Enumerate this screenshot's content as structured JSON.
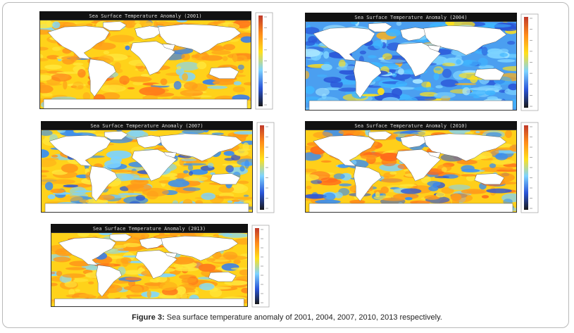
{
  "figure": {
    "caption_label": "Figure 3:",
    "caption_text": " Sea surface temperature anomaly of 2001, 2004, 2007, 2010, 2013 respectively."
  },
  "panels": [
    {
      "title": "Sea Surface Temperature Anomaly (2001)",
      "scheme": "warm"
    },
    {
      "title": "Sea Surface Temperature Anomaly (2004)",
      "scheme": "cool"
    },
    {
      "title": "Sea Surface Temperature Anomaly (2007)",
      "scheme": "mixed"
    },
    {
      "title": "Sea Surface Temperature Anomaly (2010)",
      "scheme": "mixed2"
    },
    {
      "title": "Sea Surface Temperature Anomaly (2013)",
      "scheme": "warm"
    }
  ],
  "colorbar": {
    "colors": [
      "#c0392b",
      "#ff8c1a",
      "#ffe01a",
      "#7dd3ff",
      "#2a55d8",
      "#1a1a1a"
    ]
  }
}
